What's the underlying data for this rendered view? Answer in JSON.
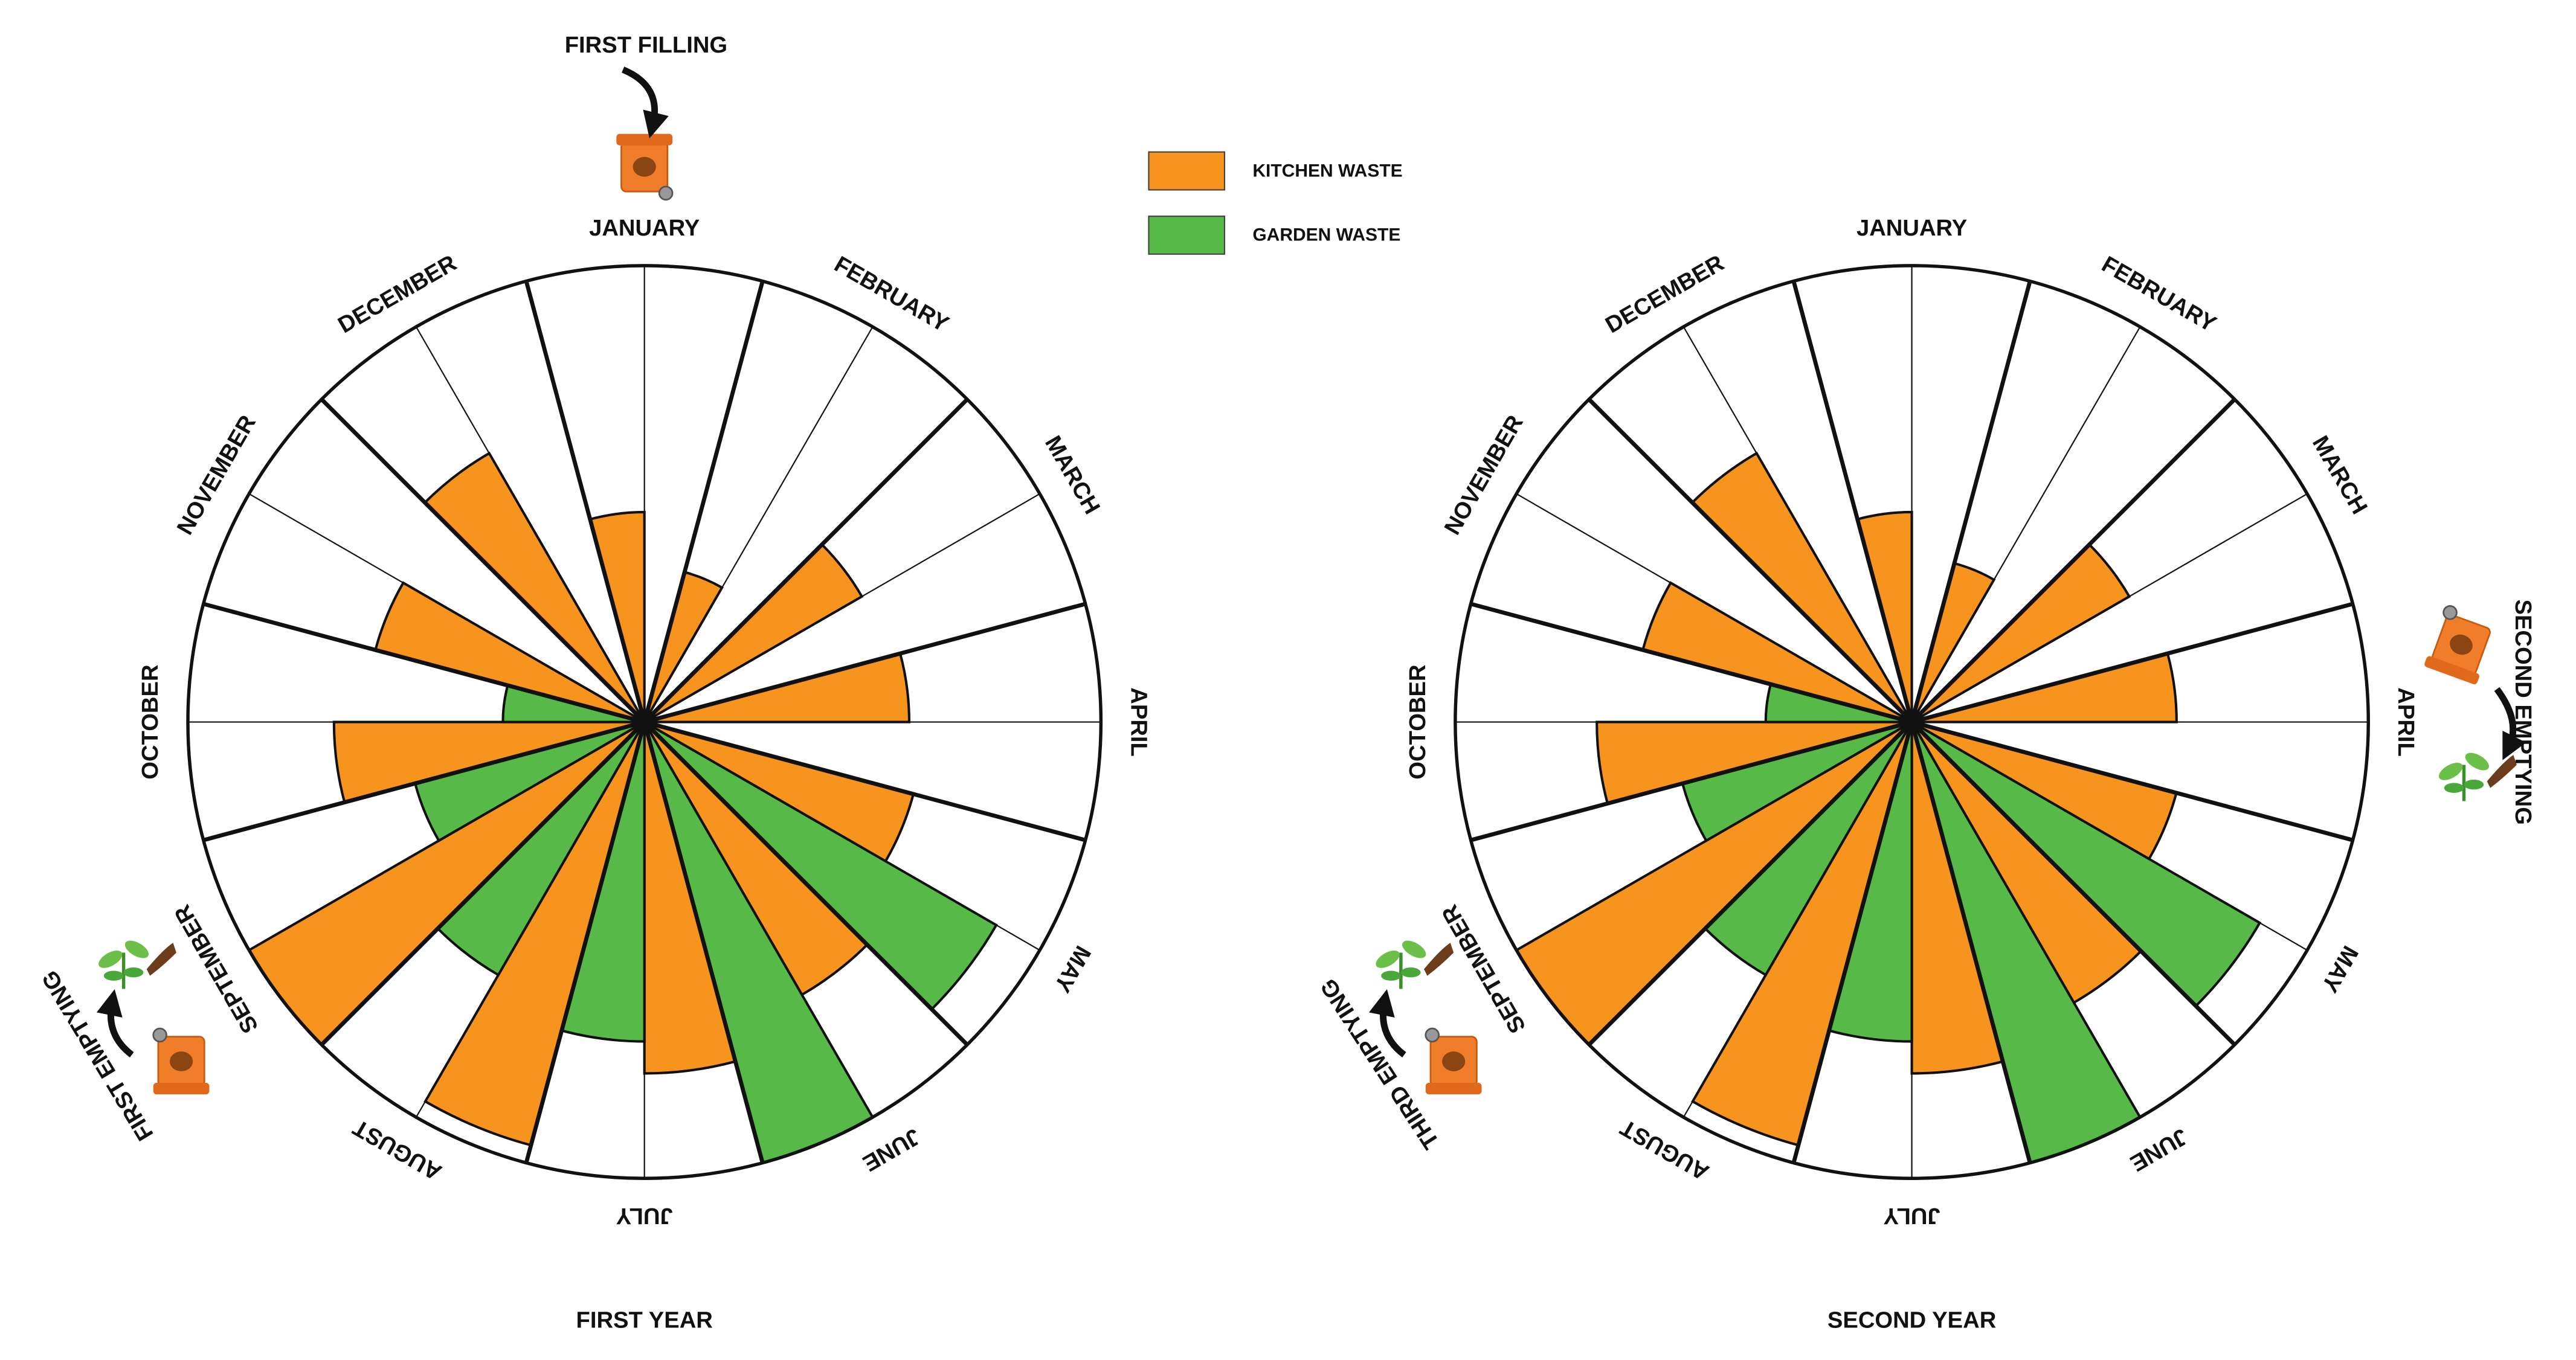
{
  "chart_data": [
    {
      "type": "polar_bar",
      "title": "FIRST YEAR",
      "categories": [
        "JANUARY",
        "FEBRUARY",
        "MARCH",
        "APRIL",
        "MAY",
        "JUNE",
        "JULY",
        "AUGUST",
        "SEPTEMBER",
        "OCTOBER",
        "NOVEMBER",
        "DECEMBER"
      ],
      "rlim": [
        0,
        100
      ],
      "series": [
        {
          "name": "KITCHEN WASTE",
          "color": "#f7941d",
          "values": [
            46,
            34,
            55,
            58,
            61,
            69,
            77,
            96,
            100,
            68,
            61,
            68
          ]
        },
        {
          "name": "GARDEN WASTE",
          "color": "#57b947",
          "values": [
            0,
            0,
            0,
            0,
            89,
            100,
            70,
            64,
            52,
            31,
            0,
            0
          ]
        }
      ],
      "annotations": [
        "FIRST FILLING",
        "FIRST EMPTYING"
      ]
    },
    {
      "type": "polar_bar",
      "title": "SECOND YEAR",
      "categories": [
        "JANUARY",
        "FEBRUARY",
        "MARCH",
        "APRIL",
        "MAY",
        "JUNE",
        "JULY",
        "AUGUST",
        "SEPTEMBER",
        "OCTOBER",
        "NOVEMBER",
        "DECEMBER"
      ],
      "rlim": [
        0,
        100
      ],
      "series": [
        {
          "color": "#f7941d",
          "values": [
            46,
            36,
            55,
            58,
            60,
            71,
            77,
            96,
            100,
            69,
            61,
            68
          ]
        },
        {
          "color": "#57b947",
          "values": [
            0,
            0,
            0,
            0,
            88,
            100,
            70,
            64,
            52,
            32,
            0,
            0
          ]
        }
      ],
      "annotations": [
        "SECOND EMPTYING",
        "THIRD EMPTYING"
      ]
    }
  ]
}
